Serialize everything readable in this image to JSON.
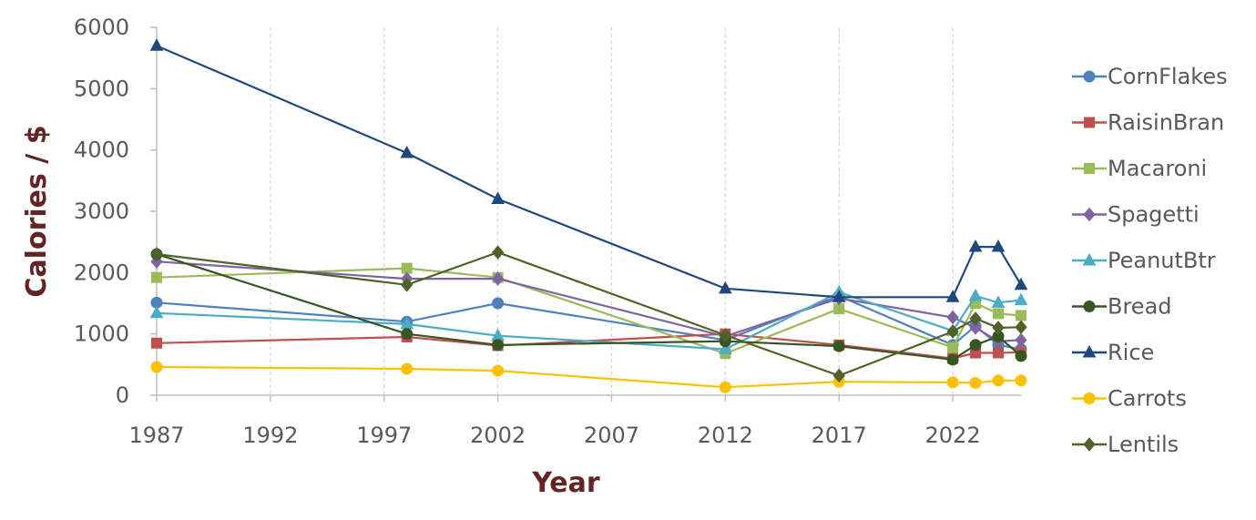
{
  "chart_data": {
    "type": "line",
    "xlabel": "Year",
    "ylabel": "Calories / $",
    "xlim": [
      1987,
      2025
    ],
    "ylim": [
      0,
      6000
    ],
    "xticks": [
      1987,
      1992,
      1997,
      2002,
      2007,
      2012,
      2017,
      2022
    ],
    "yticks": [
      0,
      1000,
      2000,
      3000,
      4000,
      5000,
      6000
    ],
    "grid": {
      "vertical": true,
      "horizontal": false
    },
    "legend_position": "right",
    "series": [
      {
        "name": "CornFlakes",
        "color": "#4F81BD",
        "marker": "circle",
        "points": [
          [
            1987,
            1510
          ],
          [
            1998,
            1200
          ],
          [
            2002,
            1500
          ],
          [
            2012,
            900
          ],
          [
            2017,
            1620
          ],
          [
            2022,
            820
          ],
          [
            2023,
            1130
          ],
          [
            2024,
            820
          ],
          [
            2025,
            750
          ]
        ]
      },
      {
        "name": "RaisinBran",
        "color": "#C0504D",
        "marker": "square",
        "points": [
          [
            1987,
            850
          ],
          [
            1998,
            950
          ],
          [
            2002,
            810
          ],
          [
            2012,
            1000
          ],
          [
            2017,
            820
          ],
          [
            2022,
            600
          ],
          [
            2023,
            690
          ],
          [
            2024,
            690
          ],
          [
            2025,
            700
          ]
        ]
      },
      {
        "name": "Macaroni",
        "color": "#9BBB59",
        "marker": "square",
        "points": [
          [
            1987,
            1920
          ],
          [
            1998,
            2070
          ],
          [
            2002,
            1920
          ],
          [
            2012,
            680
          ],
          [
            2017,
            1410
          ],
          [
            2022,
            780
          ],
          [
            2023,
            1500
          ],
          [
            2024,
            1330
          ],
          [
            2025,
            1300
          ]
        ]
      },
      {
        "name": "Spagetti",
        "color": "#8064A2",
        "marker": "diamond",
        "points": [
          [
            1987,
            2180
          ],
          [
            1998,
            1900
          ],
          [
            2002,
            1900
          ],
          [
            2012,
            960
          ],
          [
            2017,
            1580
          ],
          [
            2022,
            1270
          ],
          [
            2023,
            1100
          ],
          [
            2024,
            880
          ],
          [
            2025,
            900
          ]
        ]
      },
      {
        "name": "PeanutBtr",
        "color": "#4BACC6",
        "marker": "triangle",
        "points": [
          [
            1987,
            1340
          ],
          [
            1998,
            1160
          ],
          [
            2002,
            970
          ],
          [
            2012,
            750
          ],
          [
            2017,
            1680
          ],
          [
            2022,
            1050
          ],
          [
            2023,
            1620
          ],
          [
            2024,
            1510
          ],
          [
            2025,
            1550
          ]
        ]
      },
      {
        "name": "Bread",
        "color": "#375623",
        "marker": "circle",
        "points": [
          [
            1987,
            2300
          ],
          [
            1998,
            1000
          ],
          [
            2002,
            820
          ],
          [
            2012,
            880
          ],
          [
            2017,
            800
          ],
          [
            2022,
            580
          ],
          [
            2023,
            820
          ],
          [
            2024,
            960
          ],
          [
            2025,
            640
          ]
        ]
      },
      {
        "name": "Rice",
        "color": "#1F497D",
        "marker": "triangle",
        "points": [
          [
            1987,
            5700
          ],
          [
            1998,
            3950
          ],
          [
            2002,
            3200
          ],
          [
            2012,
            1740
          ],
          [
            2017,
            1600
          ],
          [
            2022,
            1600
          ],
          [
            2023,
            2420
          ],
          [
            2024,
            2420
          ],
          [
            2025,
            1800
          ]
        ]
      },
      {
        "name": "Carrots",
        "color": "#FFC000",
        "marker": "circle",
        "points": [
          [
            1987,
            460
          ],
          [
            1998,
            430
          ],
          [
            2002,
            400
          ],
          [
            2012,
            130
          ],
          [
            2017,
            220
          ],
          [
            2022,
            210
          ],
          [
            2023,
            200
          ],
          [
            2024,
            240
          ],
          [
            2025,
            240
          ]
        ]
      },
      {
        "name": "Lentils",
        "color": "#4F6228",
        "marker": "diamond",
        "points": [
          [
            1987,
            2300
          ],
          [
            1998,
            1800
          ],
          [
            2002,
            2330
          ],
          [
            2012,
            980
          ],
          [
            2017,
            320
          ],
          [
            2022,
            1040
          ],
          [
            2023,
            1250
          ],
          [
            2024,
            1100
          ],
          [
            2025,
            1110
          ]
        ]
      }
    ]
  }
}
